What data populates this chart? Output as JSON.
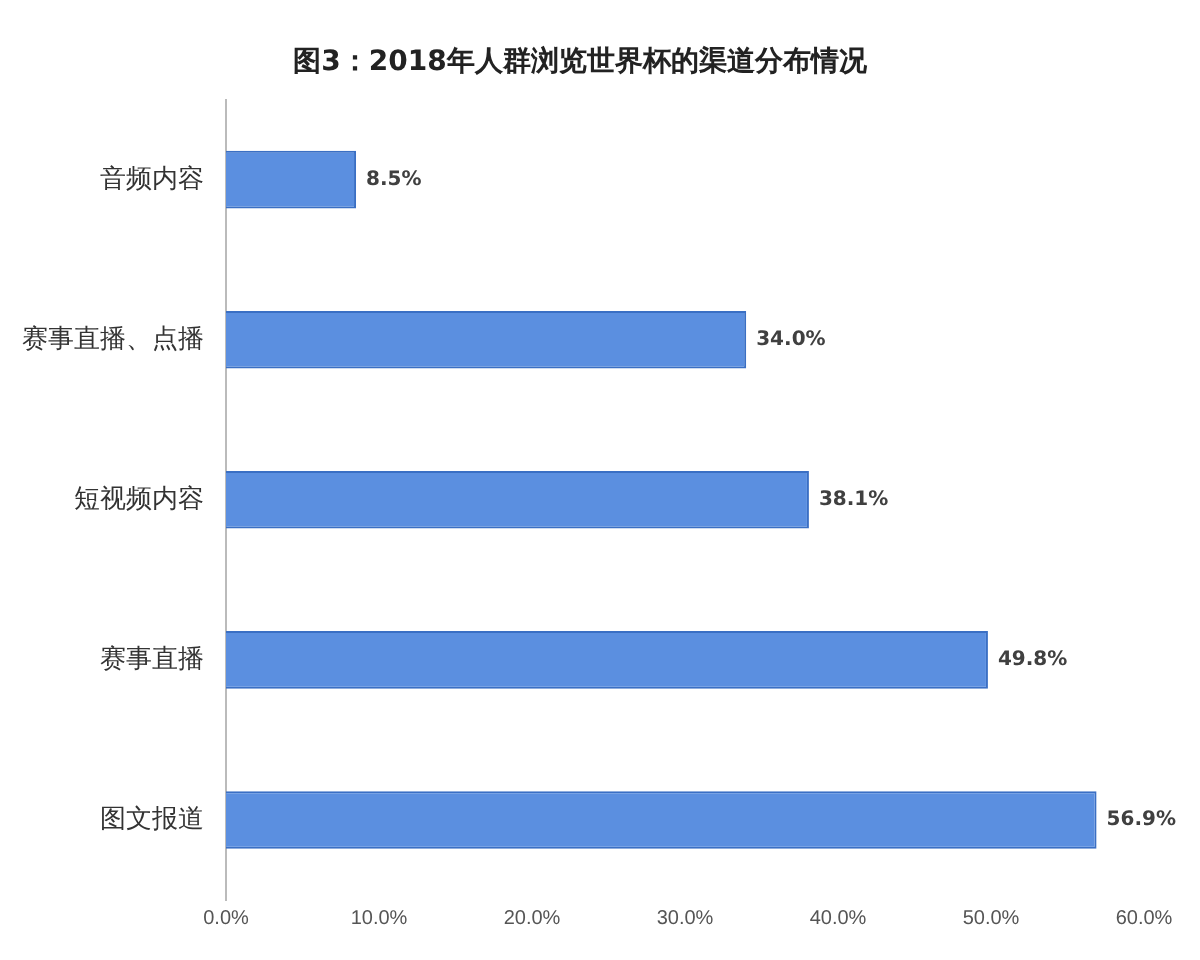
{
  "chart_data": {
    "type": "bar",
    "orientation": "horizontal",
    "title": "图3：2018年人群浏览世界杯的渠道分布情况",
    "categories": [
      "音频内容",
      "赛事直播、点播",
      "短视频内容",
      "赛事直播",
      "图文报道"
    ],
    "values": [
      8.5,
      34.0,
      38.1,
      49.8,
      56.9
    ],
    "value_labels": [
      "8.5%",
      "34.0%",
      "38.1%",
      "49.8%",
      "56.9%"
    ],
    "color": "#5b8fe0",
    "xlim": [
      0,
      60
    ],
    "xticks": [
      {
        "value": 0,
        "label": "0.0%"
      },
      {
        "value": 10,
        "label": "10.0%"
      },
      {
        "value": 20,
        "label": "20.0%"
      },
      {
        "value": 30,
        "label": "30.0%"
      },
      {
        "value": 40,
        "label": "40.0%"
      },
      {
        "value": 50,
        "label": "50.0%"
      },
      {
        "value": 60,
        "label": "60.0%"
      }
    ],
    "grid": false,
    "legend": false
  }
}
